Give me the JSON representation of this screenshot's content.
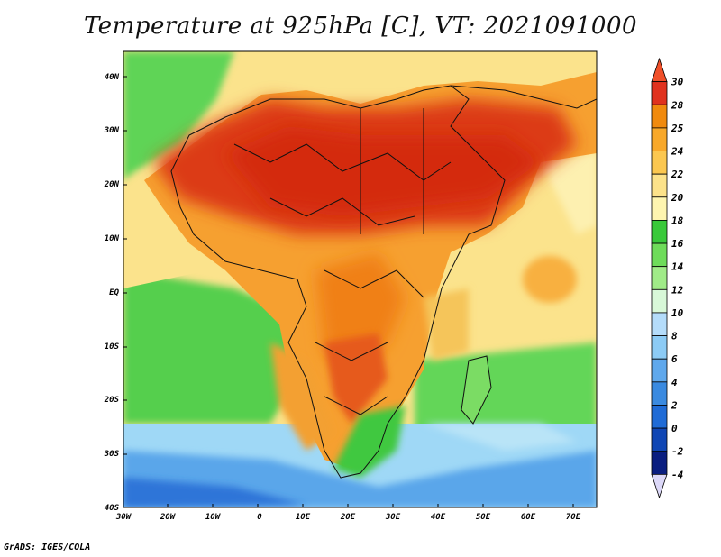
{
  "title": "Temperature at 925hPa [C], VT: 2021091000",
  "credit": "GrADS: IGES/COLA",
  "map": {
    "lat_labels": [
      "40N",
      "30N",
      "20N",
      "10N",
      "EQ",
      "10S",
      "20S",
      "30S",
      "40S"
    ],
    "lon_labels": [
      "30W",
      "20W",
      "10W",
      "0",
      "10E",
      "20E",
      "30E",
      "40E",
      "50E",
      "60E",
      "70E"
    ]
  },
  "legend": {
    "labels": [
      "30",
      "28",
      "25",
      "24",
      "22",
      "20",
      "18",
      "16",
      "14",
      "12",
      "10",
      "8",
      "6",
      "4",
      "2",
      "0",
      "-2",
      "-4"
    ],
    "colors": [
      "#f0502a",
      "#e0321e",
      "#f08a0e",
      "#f8a82a",
      "#fbc750",
      "#fce28a",
      "#fef5b0",
      "#39c93a",
      "#6edc5a",
      "#a0eb88",
      "#d8f8d8",
      "#b4dcfa",
      "#8ccbf5",
      "#5fa8ec",
      "#3a8ae0",
      "#1f6bd6",
      "#1046b4",
      "#0a1e80",
      "#dcd8f8"
    ]
  }
}
